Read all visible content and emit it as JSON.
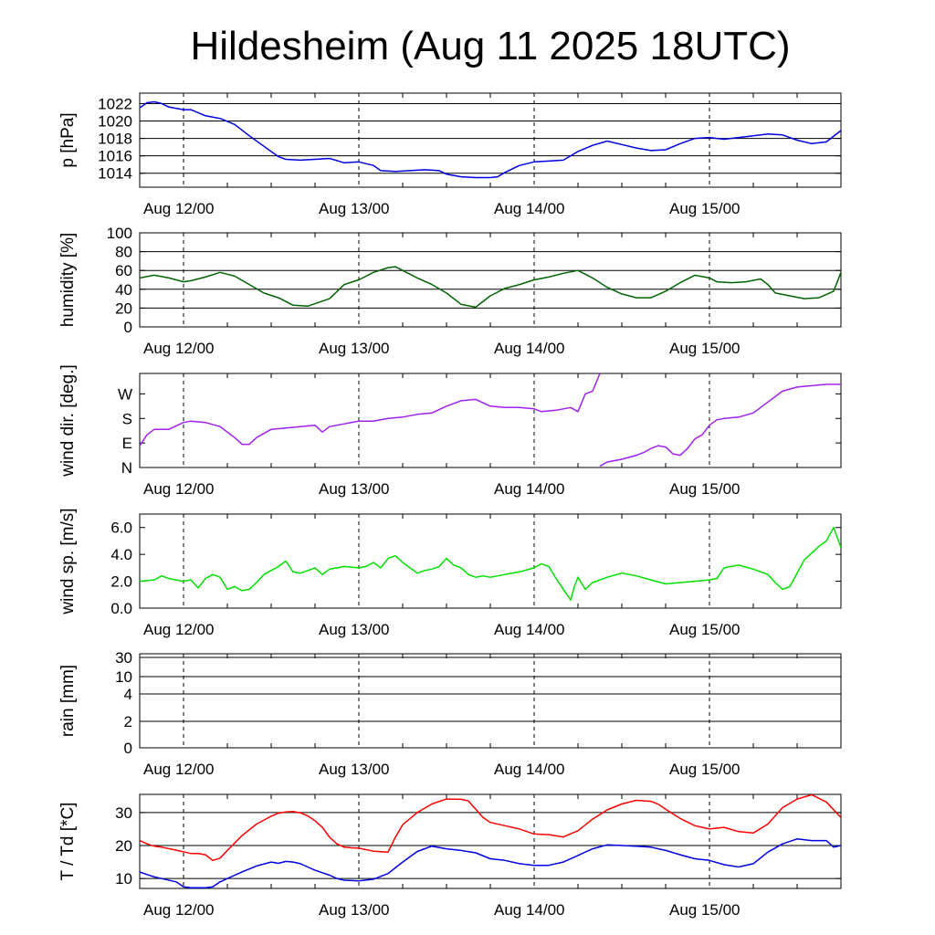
{
  "title": "Hildesheim (Aug 11 2025 18UTC)",
  "colors": {
    "pressure": "#0000e0",
    "humidity": "#006400",
    "wind_dir": "#a020f0",
    "wind_speed": "#00e000",
    "temperature": "#ff0000",
    "dewpoint": "#0000e0"
  },
  "chart_data": [
    {
      "type": "line",
      "id": "pressure",
      "ylabel": "p [hPa]",
      "x_unit": "hours since Aug 11 18UTC",
      "xlim": [
        0,
        96
      ],
      "x_tick_labels": [
        {
          "x": 6,
          "label": "Aug 12/00"
        },
        {
          "x": 30,
          "label": "Aug 13/00"
        },
        {
          "x": 54,
          "label": "Aug 14/00"
        },
        {
          "x": 78,
          "label": "Aug 15/00"
        }
      ],
      "ylim": [
        1012.4,
        1023.2
      ],
      "y_ticks": [
        1014,
        1016,
        1018,
        1020,
        1022
      ],
      "grid": true,
      "series": [
        {
          "color_key": "pressure",
          "x": [
            0,
            1,
            2,
            3,
            4,
            6,
            7,
            9,
            11,
            13,
            15,
            17,
            19,
            20,
            22,
            24,
            26,
            28,
            30,
            32,
            33,
            35,
            37,
            39,
            41,
            42,
            44,
            46,
            48,
            49,
            50,
            52,
            54,
            56,
            58,
            60,
            62,
            64,
            66,
            68,
            70,
            72,
            74,
            76,
            78,
            80,
            82,
            84,
            86,
            88,
            90,
            92,
            94,
            96
          ],
          "y": [
            1021.5,
            1022.1,
            1022.2,
            1022.0,
            1021.6,
            1021.3,
            1021.3,
            1020.6,
            1020.3,
            1019.6,
            1018.3,
            1017.1,
            1015.9,
            1015.6,
            1015.5,
            1015.6,
            1015.7,
            1015.2,
            1015.3,
            1014.9,
            1014.3,
            1014.2,
            1014.3,
            1014.4,
            1014.3,
            1013.9,
            1013.6,
            1013.5,
            1013.5,
            1013.6,
            1014.1,
            1014.9,
            1015.3,
            1015.4,
            1015.5,
            1016.5,
            1017.2,
            1017.7,
            1017.3,
            1016.9,
            1016.6,
            1016.7,
            1017.4,
            1018.0,
            1018.1,
            1017.9,
            1018.1,
            1018.3,
            1018.5,
            1018.4,
            1017.8,
            1017.4,
            1017.6,
            1018.9
          ]
        }
      ]
    },
    {
      "type": "line",
      "id": "humidity",
      "ylabel": "humidity [%]",
      "xlim": [
        0,
        96
      ],
      "ylim": [
        0,
        100
      ],
      "y_ticks": [
        0,
        20,
        40,
        60,
        80,
        100
      ],
      "grid": true,
      "series": [
        {
          "color_key": "humidity",
          "x": [
            0,
            2,
            4,
            6,
            7,
            9,
            11,
            13,
            15,
            17,
            19,
            21,
            23,
            26,
            28,
            30,
            32,
            34,
            35,
            36,
            38,
            40,
            42,
            44,
            46,
            48,
            50,
            52,
            54,
            56,
            58,
            60,
            62,
            64,
            66,
            68,
            70,
            72,
            74,
            76,
            78,
            79,
            81,
            83,
            85,
            86,
            87,
            89,
            91,
            93,
            95,
            96
          ],
          "y": [
            52,
            55,
            52,
            48,
            49,
            53,
            58,
            54,
            45,
            36,
            31,
            23,
            22,
            30,
            45,
            50,
            58,
            63,
            64,
            60,
            52,
            45,
            36,
            24,
            21,
            33,
            41,
            45,
            50,
            53,
            57,
            60,
            52,
            42,
            35,
            31,
            31,
            38,
            47,
            55,
            52,
            48,
            47,
            48,
            51,
            45,
            36,
            33,
            30,
            31,
            38,
            58
          ]
        }
      ]
    },
    {
      "type": "line",
      "id": "wind_dir",
      "ylabel": "wind dir. [deg.]",
      "xlim": [
        0,
        96
      ],
      "ylim": [
        0,
        345
      ],
      "y_ticks": [
        0,
        90,
        180,
        270
      ],
      "y_tick_labels": [
        "N",
        "E",
        "S",
        "W"
      ],
      "grid": false,
      "series": [
        {
          "color_key": "wind_dir",
          "x": [
            0,
            1,
            2,
            4,
            6,
            7,
            9,
            11,
            13,
            14,
            15,
            16,
            18,
            20,
            22,
            24,
            25,
            26,
            28,
            30,
            32,
            34,
            36,
            38,
            40,
            42,
            44,
            46,
            48,
            50,
            52,
            54,
            55,
            57,
            59,
            60,
            61,
            62,
            63
          ],
          "y": [
            80,
            120,
            140,
            140,
            165,
            170,
            165,
            150,
            110,
            85,
            85,
            110,
            140,
            145,
            150,
            155,
            130,
            150,
            160,
            170,
            170,
            180,
            185,
            195,
            200,
            225,
            245,
            250,
            225,
            220,
            220,
            215,
            205,
            210,
            220,
            205,
            270,
            280,
            345
          ]
        },
        {
          "color_key": "wind_dir",
          "x": [
            63,
            64,
            66,
            68,
            69,
            70,
            71,
            72,
            73,
            74,
            75,
            76,
            77,
            78,
            79,
            80,
            82,
            84,
            86,
            88,
            90,
            92,
            94,
            96
          ],
          "y": [
            5,
            20,
            30,
            45,
            55,
            70,
            80,
            75,
            50,
            45,
            70,
            105,
            120,
            155,
            175,
            180,
            185,
            200,
            240,
            280,
            295,
            300,
            305,
            305
          ]
        }
      ]
    },
    {
      "type": "line",
      "id": "wind_speed",
      "ylabel": "wind sp. [m/s]",
      "xlim": [
        0,
        96
      ],
      "ylim": [
        0,
        7
      ],
      "y_ticks": [
        0,
        2,
        4,
        6
      ],
      "y_tick_labels": [
        "0.0",
        "2.0",
        "4.0",
        "6.0"
      ],
      "grid": false,
      "series": [
        {
          "color_key": "wind_speed",
          "x": [
            0,
            2,
            3,
            4,
            6,
            7,
            8,
            9,
            10,
            11,
            12,
            13,
            14,
            15,
            16,
            17,
            18,
            19,
            20,
            21,
            22,
            23,
            24,
            25,
            26,
            27,
            28,
            30,
            31,
            32,
            33,
            34,
            35,
            36,
            37,
            38,
            39,
            40,
            41,
            42,
            43,
            44,
            45,
            46,
            47,
            48,
            50,
            52,
            54,
            55,
            56,
            57,
            58,
            59,
            59.5,
            60,
            61,
            62,
            64,
            66,
            68,
            70,
            72,
            74,
            76,
            78,
            79,
            80,
            82,
            84,
            86,
            87,
            88,
            89,
            90,
            91,
            92,
            93,
            94,
            95,
            96
          ],
          "y": [
            2.0,
            2.1,
            2.4,
            2.2,
            2.0,
            2.1,
            1.5,
            2.2,
            2.5,
            2.3,
            1.4,
            1.6,
            1.3,
            1.4,
            1.9,
            2.5,
            2.8,
            3.1,
            3.5,
            2.7,
            2.6,
            2.8,
            3.0,
            2.5,
            2.9,
            3.0,
            3.1,
            3.0,
            3.1,
            3.4,
            3.0,
            3.7,
            3.9,
            3.4,
            3.0,
            2.6,
            2.8,
            2.9,
            3.1,
            3.7,
            3.2,
            3.0,
            2.5,
            2.3,
            2.4,
            2.3,
            2.5,
            2.7,
            3.0,
            3.3,
            3.1,
            2.2,
            1.4,
            0.6,
            1.6,
            2.3,
            1.4,
            1.9,
            2.3,
            2.6,
            2.4,
            2.1,
            1.8,
            1.9,
            2.0,
            2.1,
            2.2,
            3.0,
            3.2,
            2.9,
            2.5,
            1.9,
            1.4,
            1.6,
            2.6,
            3.6,
            4.1,
            4.6,
            5.0,
            6.0,
            4.5
          ]
        }
      ]
    },
    {
      "type": "line",
      "id": "rain",
      "ylabel": "rain [mm]",
      "xlim": [
        0,
        96
      ],
      "y_ticks": [
        0,
        2,
        4,
        10,
        30
      ],
      "y_tick_labels": [
        "0",
        "2",
        "4",
        "10",
        "30"
      ],
      "grid": true,
      "series": []
    },
    {
      "type": "line",
      "id": "temp_dewpoint",
      "ylabel": "T / Td [*C]",
      "xlim": [
        0,
        96
      ],
      "ylim": [
        7,
        35.5
      ],
      "y_ticks": [
        10,
        20,
        30
      ],
      "grid": true,
      "series": [
        {
          "color_key": "temperature",
          "x": [
            0,
            1,
            2,
            3,
            5,
            7,
            8,
            9,
            10,
            11,
            12,
            14,
            16,
            18,
            19,
            20,
            21,
            22,
            23,
            24,
            25,
            26,
            27,
            28,
            29,
            30,
            32,
            34,
            35,
            36,
            38,
            40,
            42,
            44,
            45,
            46,
            47,
            48,
            50,
            52,
            54,
            56,
            58,
            60,
            62,
            64,
            66,
            68,
            70,
            71,
            72,
            74,
            76,
            78,
            80,
            82,
            84,
            86,
            88,
            90,
            92,
            94,
            96
          ],
          "y": [
            21.5,
            20.5,
            19.8,
            19.5,
            18.6,
            17.6,
            17.6,
            17.2,
            15.5,
            16.2,
            18.5,
            23.0,
            26.5,
            28.9,
            29.8,
            30.2,
            30.3,
            29.9,
            29.0,
            27.5,
            25.5,
            22.5,
            20.5,
            19.5,
            19.3,
            19.2,
            18.3,
            18.0,
            22.5,
            26.3,
            30.0,
            32.6,
            34.1,
            34.0,
            33.5,
            31.0,
            28.5,
            27.0,
            26.0,
            25.0,
            23.5,
            23.3,
            22.6,
            24.5,
            28.0,
            30.8,
            32.6,
            33.7,
            33.4,
            32.5,
            31.0,
            28.2,
            26.0,
            25.0,
            25.5,
            24.2,
            23.8,
            26.5,
            31.5,
            34.1,
            35.4,
            33.2,
            28.5
          ]
        },
        {
          "color_key": "dewpoint",
          "x": [
            0,
            1,
            2,
            3,
            5,
            6,
            7,
            9,
            10,
            11,
            12,
            14,
            16,
            18,
            19,
            20,
            21,
            22,
            23,
            24,
            26,
            27,
            28,
            30,
            32,
            34,
            36,
            38,
            40,
            42,
            44,
            46,
            48,
            50,
            52,
            54,
            56,
            58,
            60,
            62,
            64,
            66,
            68,
            70,
            72,
            74,
            76,
            78,
            80,
            82,
            84,
            86,
            88,
            90,
            92,
            94,
            95,
            96
          ],
          "y": [
            12.0,
            11.2,
            10.5,
            10.0,
            9.0,
            7.5,
            7.2,
            7.2,
            7.5,
            9.0,
            10.0,
            12.0,
            13.8,
            15.0,
            14.6,
            15.2,
            15.0,
            14.5,
            13.5,
            12.5,
            11.0,
            10.0,
            9.5,
            9.3,
            9.8,
            11.5,
            15.0,
            18.2,
            19.8,
            19.0,
            18.5,
            17.8,
            16.0,
            15.5,
            14.5,
            14.0,
            14.0,
            15.0,
            17.0,
            19.0,
            20.2,
            20.0,
            19.8,
            19.5,
            18.5,
            17.2,
            16.0,
            15.5,
            14.2,
            13.5,
            14.5,
            18.0,
            20.5,
            22.0,
            21.5,
            21.5,
            19.5,
            20.0
          ]
        }
      ]
    }
  ]
}
